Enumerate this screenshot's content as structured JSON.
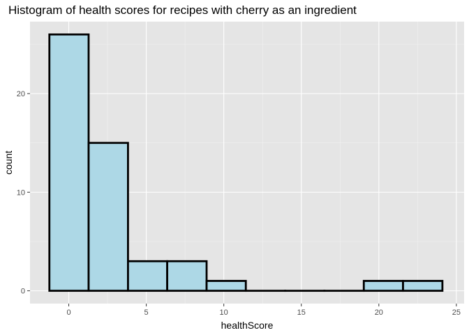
{
  "chart_data": {
    "type": "bar",
    "subtype": "histogram",
    "title": "Histogram of health scores for recipes with cherry as an ingredient",
    "xlabel": "healthScore",
    "ylabel": "count",
    "xlim": [
      -2.5,
      25.5
    ],
    "ylim": [
      -1.3,
      27.3
    ],
    "x_ticks": [
      0,
      5,
      10,
      15,
      20,
      25
    ],
    "x_tick_labels": [
      "0",
      "5",
      "10",
      "15",
      "20",
      "25"
    ],
    "y_ticks": [
      0,
      10,
      20
    ],
    "y_tick_labels": [
      "0",
      "10",
      "20"
    ],
    "bins": [
      {
        "start": -1.25,
        "end": 1.28,
        "count": 26
      },
      {
        "start": 1.28,
        "end": 3.82,
        "count": 15
      },
      {
        "start": 3.82,
        "end": 6.35,
        "count": 3
      },
      {
        "start": 6.35,
        "end": 8.89,
        "count": 3
      },
      {
        "start": 8.89,
        "end": 11.42,
        "count": 1
      },
      {
        "start": 11.42,
        "end": 13.96,
        "count": 0
      },
      {
        "start": 13.96,
        "end": 16.49,
        "count": 0
      },
      {
        "start": 16.49,
        "end": 19.03,
        "count": 0
      },
      {
        "start": 19.03,
        "end": 21.56,
        "count": 1
      },
      {
        "start": 21.56,
        "end": 24.1,
        "count": 1
      }
    ],
    "grid": true,
    "colors": {
      "panel_background": "#e5e5e5",
      "grid_major": "#ffffff",
      "bar_fill": "#add8e6",
      "bar_stroke": "#000000"
    }
  }
}
